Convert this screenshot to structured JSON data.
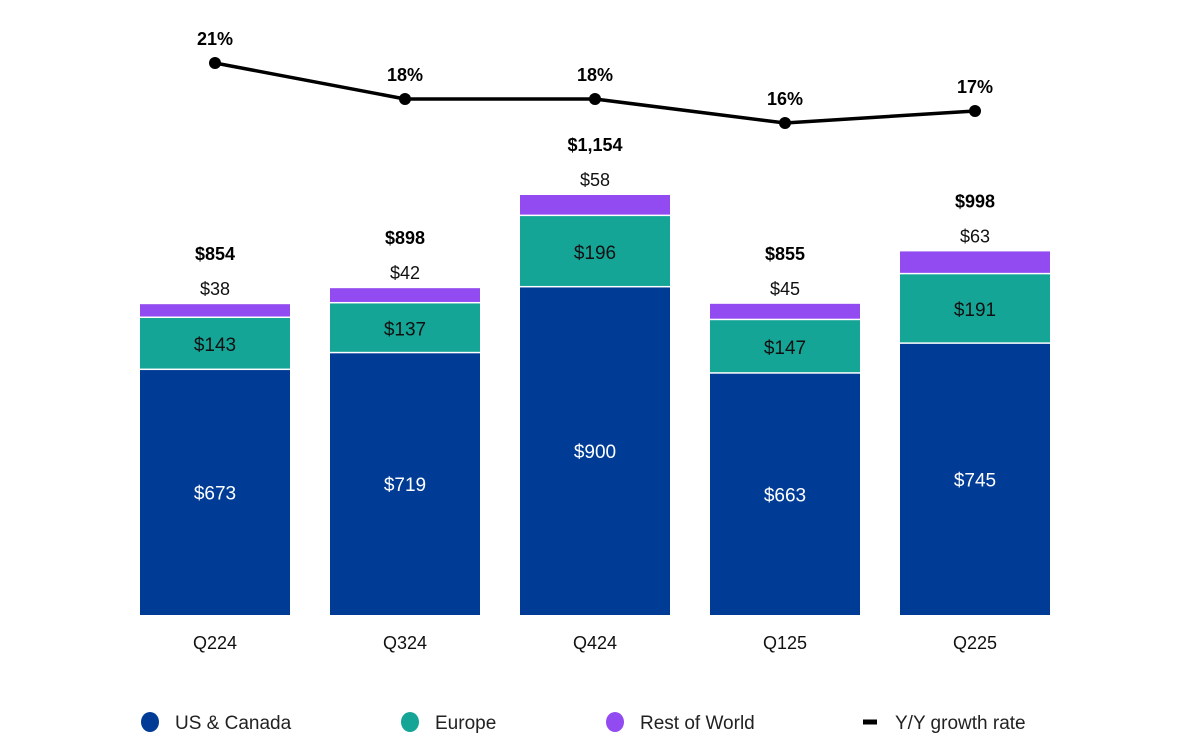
{
  "chart_data": {
    "type": "bar",
    "stacked": true,
    "title": "",
    "xlabel": "",
    "ylabel": "",
    "categories": [
      "Q224",
      "Q324",
      "Q424",
      "Q125",
      "Q225"
    ],
    "series": [
      {
        "name": "US & Canada",
        "color": "#003C96",
        "label_color": "#ffffff",
        "values": [
          673,
          719,
          900,
          663,
          745
        ],
        "labels": [
          "$673",
          "$719",
          "$900",
          "$663",
          "$745"
        ]
      },
      {
        "name": "Europe",
        "color": "#14A597",
        "label_color": "#111111",
        "values": [
          143,
          137,
          196,
          147,
          191
        ],
        "labels": [
          "$143",
          "$137",
          "$196",
          "$147",
          "$191"
        ]
      },
      {
        "name": "Rest of World",
        "color": "#914BF0",
        "label_color": "#111111",
        "values": [
          38,
          42,
          58,
          45,
          63
        ],
        "labels": [
          "$38",
          "$42",
          "$58",
          "$45",
          "$63"
        ]
      }
    ],
    "totals": [
      854,
      898,
      1154,
      855,
      998
    ],
    "total_labels": [
      "$854",
      "$898",
      "$1,154",
      "$855",
      "$998"
    ],
    "line_series": {
      "name": "Y/Y growth rate",
      "color": "#000000",
      "values": [
        21,
        18,
        18,
        16,
        17
      ],
      "labels": [
        "21%",
        "18%",
        "18%",
        "16%",
        "17%"
      ]
    },
    "ylim": [
      0,
      1154
    ],
    "grid": false,
    "legend_position": "bottom",
    "legend": [
      {
        "label": "US & Canada",
        "marker": "circle",
        "color": "#003C96"
      },
      {
        "label": "Europe",
        "marker": "circle",
        "color": "#14A597"
      },
      {
        "label": "Rest of World",
        "marker": "circle",
        "color": "#914BF0"
      },
      {
        "label": "Y/Y growth rate",
        "marker": "line",
        "color": "#000000"
      }
    ]
  }
}
